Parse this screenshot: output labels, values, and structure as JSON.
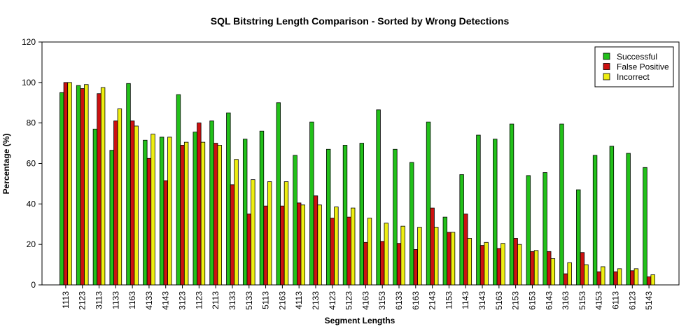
{
  "chart_data": {
    "type": "bar",
    "title": "SQL Bitstring Length Comparison - Sorted by Wrong Detections",
    "xlabel": "Segment Lengths",
    "ylabel": "Percentage (%)",
    "ylim": [
      0,
      120
    ],
    "yticks": [
      0,
      20,
      40,
      60,
      80,
      100,
      120
    ],
    "grid": false,
    "legend_position": "top-right",
    "categories": [
      "1113",
      "2123",
      "3113",
      "1133",
      "1163",
      "4133",
      "4143",
      "3123",
      "1123",
      "2113",
      "3133",
      "5133",
      "5113",
      "2163",
      "4113",
      "2133",
      "4123",
      "5123",
      "4163",
      "3153",
      "6133",
      "6163",
      "2143",
      "1153",
      "1143",
      "3143",
      "5163",
      "2153",
      "6153",
      "6143",
      "3163",
      "5153",
      "4153",
      "6113",
      "6123",
      "5143"
    ],
    "series": [
      {
        "name": "Successful",
        "color": "#22c01a",
        "values": [
          95,
          98.5,
          77,
          66.5,
          99.5,
          71.5,
          73,
          94,
          75.5,
          81,
          85,
          72,
          76,
          90,
          64,
          80.5,
          67,
          69,
          70,
          86.5,
          67,
          60.5,
          80.5,
          33.5,
          54.5,
          74,
          72,
          79.5,
          54,
          55.5,
          79.5,
          47,
          64,
          68.5,
          65,
          58
        ]
      },
      {
        "name": "False Positive",
        "color": "#cc1111",
        "values": [
          100,
          97,
          94.5,
          81,
          81,
          62.5,
          51.5,
          69,
          80,
          70,
          49.5,
          35,
          39,
          39,
          40.5,
          44,
          33,
          33.5,
          21,
          21.5,
          20.5,
          17.5,
          38,
          26,
          35,
          19.5,
          18,
          23,
          16.5,
          16.5,
          5.5,
          16,
          6.5,
          6.5,
          7,
          4
        ]
      },
      {
        "name": "Incorrect",
        "color": "#eeee11",
        "values": [
          100,
          99,
          97.5,
          87,
          78.5,
          74.5,
          73,
          70.5,
          70.5,
          69,
          62,
          52,
          51,
          51,
          39.5,
          39.5,
          38.5,
          38,
          33,
          30.5,
          29,
          28.5,
          28.5,
          26,
          23,
          21,
          20.5,
          20,
          17,
          13,
          11,
          10,
          9,
          8,
          8,
          5
        ]
      }
    ]
  }
}
